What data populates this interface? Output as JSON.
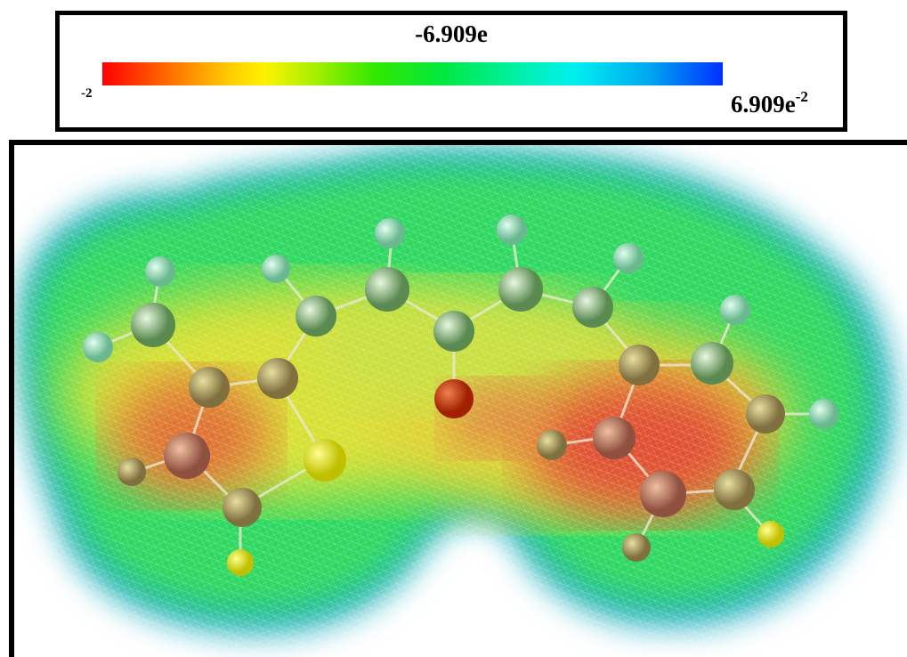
{
  "colorbar": {
    "title": "-6.909e",
    "min_exponent": "-2",
    "max_label": "6.909e",
    "max_exponent": "-2"
  }
}
